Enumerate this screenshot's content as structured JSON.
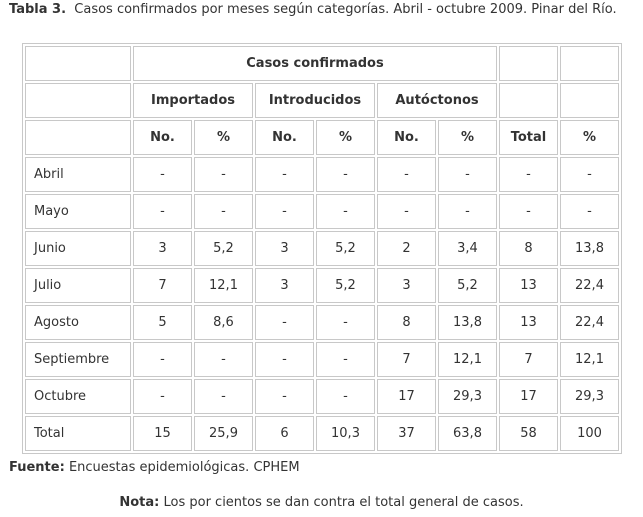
{
  "caption": {
    "label": "Tabla 3.",
    "text": "Casos confirmados por meses según categorías. Abril - octubre 2009. Pinar del Río."
  },
  "table": {
    "group_header": "Casos confirmados",
    "categories": [
      "Importados",
      "Introducidos",
      "Autóctonos"
    ],
    "sub_headers": [
      "No.",
      "%",
      "No.",
      "%",
      "No.",
      "%",
      "Total",
      "%"
    ],
    "rows": [
      {
        "month": "Abril",
        "values": [
          "-",
          "-",
          "-",
          "-",
          "-",
          "-",
          "-",
          "-"
        ]
      },
      {
        "month": "Mayo",
        "values": [
          "-",
          "-",
          "-",
          "-",
          "-",
          "-",
          "-",
          "-"
        ]
      },
      {
        "month": "Junio",
        "values": [
          "3",
          "5,2",
          "3",
          "5,2",
          "2",
          "3,4",
          "8",
          "13,8"
        ]
      },
      {
        "month": "Julio",
        "values": [
          "7",
          "12,1",
          "3",
          "5,2",
          "3",
          "5,2",
          "13",
          "22,4"
        ]
      },
      {
        "month": "Agosto",
        "values": [
          "5",
          "8,6",
          "-",
          "-",
          "8",
          "13,8",
          "13",
          "22,4"
        ]
      },
      {
        "month": "Septiembre",
        "values": [
          "-",
          "-",
          "-",
          "-",
          "7",
          "12,1",
          "7",
          "12,1"
        ]
      },
      {
        "month": "Octubre",
        "values": [
          "-",
          "-",
          "-",
          "-",
          "17",
          "29,3",
          "17",
          "29,3"
        ]
      },
      {
        "month": "Total",
        "values": [
          "15",
          "25,9",
          "6",
          "10,3",
          "37",
          "63,8",
          "58",
          "100"
        ]
      }
    ]
  },
  "fuente": {
    "label": "Fuente:",
    "text": "Encuestas epidemiológicas. CPHEM"
  },
  "nota": {
    "label": "Nota:",
    "text": "Los por cientos se dan contra el total general de casos."
  }
}
